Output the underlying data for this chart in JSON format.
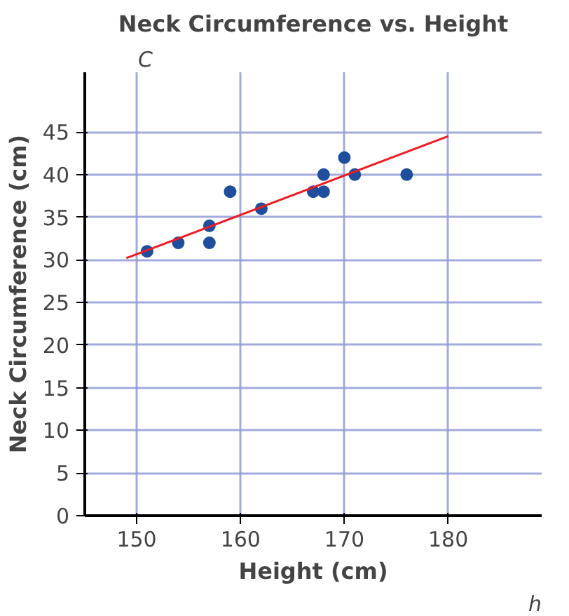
{
  "chart_data": {
    "type": "scatter",
    "title": "Neck Circumference vs. Height",
    "xlabel": "Height (cm)",
    "ylabel": "Neck Circumference (cm)",
    "annotations": [
      "C",
      "h"
    ],
    "series": [
      {
        "color": "#1f4e9c",
        "marker": "circle",
        "x": [
          151,
          154,
          157,
          157,
          159,
          162,
          167,
          168,
          168,
          170,
          171,
          176
        ],
        "values": [
          31,
          32,
          34,
          32,
          38,
          36,
          38,
          38,
          40,
          42,
          40,
          40
        ]
      },
      {
        "type": "line",
        "color": "#ee1c24",
        "line_style": "solid",
        "x": [
          149,
          180
        ],
        "values": [
          30.2,
          44.5
        ]
      }
    ],
    "xlim": [
      145,
      189
    ],
    "ylim": [
      0,
      52
    ],
    "xticks": [
      150,
      160,
      170,
      180
    ],
    "yticks": [
      0,
      5,
      10,
      15,
      20,
      25,
      30,
      35,
      40,
      45
    ],
    "grid": true
  }
}
